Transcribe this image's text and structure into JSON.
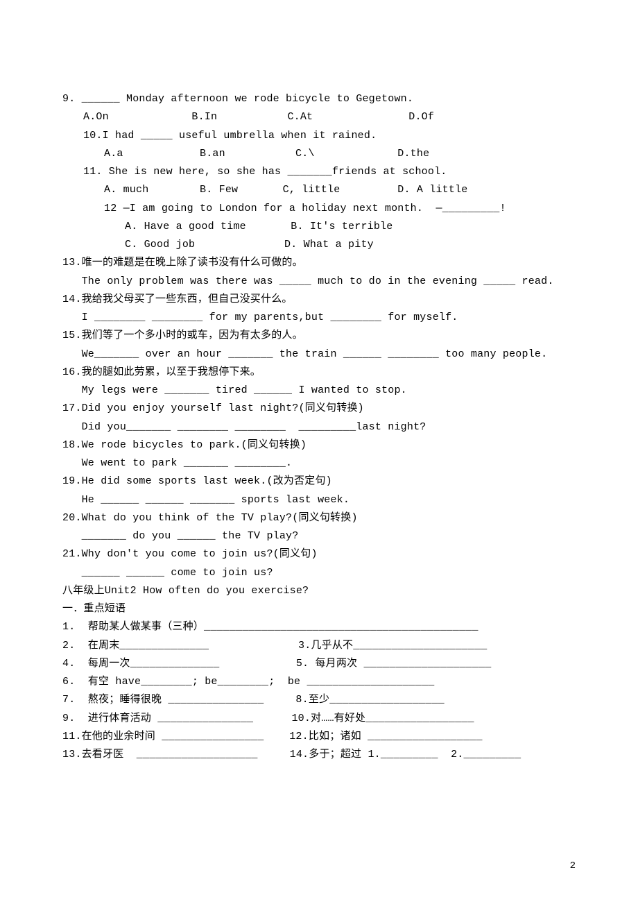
{
  "q9": {
    "text": "9. ______ Monday afternoon we rode bicycle to Gegetown.",
    "opts": "A.On             B.In           C.At               D.Of"
  },
  "q10": {
    "text": "10.I had _____ useful umbrella when it rained.",
    "opts": "A.a            B.an           C.\\             D.the"
  },
  "q11": {
    "text": "11. She is new here, so she has _______friends at school.",
    "opts": "A. much        B. Few       C, little         D. A little"
  },
  "q12": {
    "text": "12 —I am going to London for a holiday next month.  —_________!",
    "optsA": "A. Have a good time       B. It's terrible",
    "optsB": "C. Good job              D. What a pity"
  },
  "q13": {
    "cn": "13.唯一的难题是在晚上除了读书没有什么可做的。",
    "en": "The only problem was there was _____ much to do in the evening _____ read."
  },
  "q14": {
    "cn": "14.我给我父母买了一些东西，但自己没买什么。",
    "en": "I ________ ________ for my parents,but ________ for myself."
  },
  "q15": {
    "cn": "15.我们等了一个多小时的或车，因为有太多的人。",
    "en": "We_______ over an hour _______ the train ______ ________ too many people."
  },
  "q16": {
    "cn": "16.我的腿如此劳累，以至于我想停下来。",
    "en": "My legs were _______ tired ______ I wanted to stop."
  },
  "q17": {
    "a": "17.Did you enjoy yourself last night?(同义句转换)",
    "b": "Did you_______ ________ ________  _________last night?"
  },
  "q18": {
    "a": "18.We rode bicycles to park.(同义句转换)",
    "b": "We went to park _______ ________."
  },
  "q19": {
    "a": "19.He did some sports last week.(改为否定句)",
    "b": "He ______ ______ _______ sports last week."
  },
  "q20": {
    "a": "20.What do you think of the TV play?(同义句转换)",
    "b": "_______ do you ______ the TV play?"
  },
  "q21": {
    "a": "21.Why don't you come to join us?(同义句)",
    "b": "______ ______ come to join us?"
  },
  "unit": "八年级上Unit2 How often do you exercise?",
  "section": "一．重点短语",
  "p1": "1.  帮助某人做某事（三种）___________________________________________",
  "p2": "2.  在周末______________              3.几乎从不_____________________",
  "p3": "4.  每周一次______________            5. 每月两次 ____________________",
  "p4": "6.  有空 have________; be________;  be ____________________",
  "p5": "7.  熬夜；睡得很晚 _______________     8.至少__________________",
  "p6": "9.  进行体育活动 _______________      10.对……有好处_________________",
  "p7": "11.在他的业余时间 ________________    12.比如；诸如 __________________",
  "p8": "13.去看牙医  ___________________     14.多于；超过 1._________  2._________",
  "pageNumber": "2"
}
